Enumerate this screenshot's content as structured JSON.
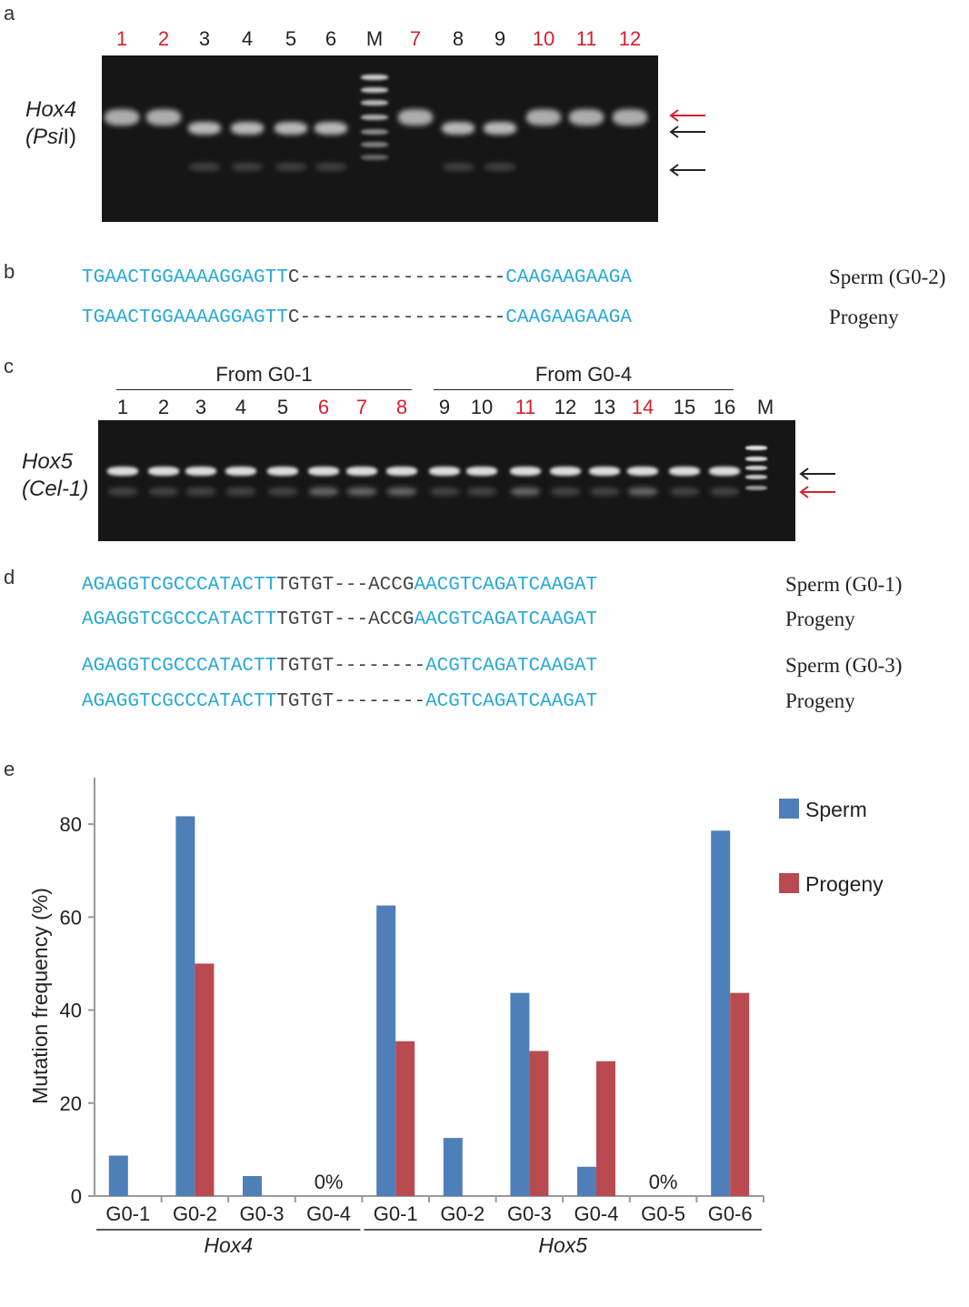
{
  "panels": {
    "a": "a",
    "b": "b",
    "c": "c",
    "d": "d",
    "e": "e"
  },
  "panel_a": {
    "lanes": [
      {
        "label": "1",
        "color": "red"
      },
      {
        "label": "2",
        "color": "red"
      },
      {
        "label": "3",
        "color": "black"
      },
      {
        "label": "4",
        "color": "black"
      },
      {
        "label": "5",
        "color": "black"
      },
      {
        "label": "6",
        "color": "black"
      },
      {
        "label": "M",
        "color": "black"
      },
      {
        "label": "7",
        "color": "red"
      },
      {
        "label": "8",
        "color": "black"
      },
      {
        "label": "9",
        "color": "black"
      },
      {
        "label": "10",
        "color": "red"
      },
      {
        "label": "11",
        "color": "red"
      },
      {
        "label": "12",
        "color": "red"
      }
    ],
    "gene": "Hox4",
    "enzyme_open": "(",
    "enzyme": "Psi",
    "enzyme_close": "I)"
  },
  "panel_b": {
    "rows": [
      {
        "left": "TGAACTGGAAAAGGAGTT",
        "mid": "C------------------",
        "right": "CAAGAAGAAGA",
        "label": "Sperm (G0-2)"
      },
      {
        "left": "TGAACTGGAAAAGGAGTT",
        "mid": "C------------------",
        "right": "CAAGAAGAAGA",
        "label": "Progeny"
      }
    ]
  },
  "panel_c": {
    "group1": "From G0-1",
    "group2": "From G0-4",
    "lanes": [
      {
        "label": "1",
        "color": "black"
      },
      {
        "label": "2",
        "color": "black"
      },
      {
        "label": "3",
        "color": "black"
      },
      {
        "label": "4",
        "color": "black"
      },
      {
        "label": "5",
        "color": "black"
      },
      {
        "label": "6",
        "color": "red"
      },
      {
        "label": "7",
        "color": "red"
      },
      {
        "label": "8",
        "color": "red"
      },
      {
        "label": "9",
        "color": "black"
      },
      {
        "label": "10",
        "color": "black"
      },
      {
        "label": "11",
        "color": "red"
      },
      {
        "label": "12",
        "color": "black"
      },
      {
        "label": "13",
        "color": "black"
      },
      {
        "label": "14",
        "color": "red"
      },
      {
        "label": "15",
        "color": "black"
      },
      {
        "label": "16",
        "color": "black"
      },
      {
        "label": "M",
        "color": "black"
      }
    ],
    "gene": "Hox5",
    "enzyme": "(Cel-1)"
  },
  "panel_d": {
    "rows": [
      {
        "left": "AGAGGTCGCCCATACTT",
        "mid": "TGTGT---ACCG",
        "right": "AACGTCAGATCAAGAT",
        "label": "Sperm (G0-1)"
      },
      {
        "left": "AGAGGTCGCCCATACTT",
        "mid": "TGTGT---ACCG",
        "right": "AACGTCAGATCAAGAT",
        "label": "Progeny"
      },
      {
        "left": "AGAGGTCGCCCATACTT",
        "mid": "TGTGT--------",
        "right": "ACGTCAGATCAAGAT",
        "label": "Sperm (G0-3)"
      },
      {
        "left": "AGAGGTCGCCCATACTT",
        "mid": "TGTGT--------",
        "right": "ACGTCAGATCAAGAT",
        "label": "Progeny"
      }
    ]
  },
  "colors": {
    "sperm": "#4f7fb8",
    "progeny": "#b94a50",
    "seq_cyan": "#27a9d6",
    "lane_red": "#d3212f"
  },
  "chart_data": {
    "type": "bar",
    "ylabel": "Mutation frequency (%)",
    "ylim": [
      0,
      90
    ],
    "yticks": [
      "0",
      "20",
      "40",
      "60",
      "80"
    ],
    "legend_position": "top-right",
    "categories": [
      "G0-1",
      "G0-2",
      "G0-3",
      "G0-4",
      "G0-1",
      "G0-2",
      "G0-3",
      "G0-4",
      "G0-5",
      "G0-6"
    ],
    "groups": [
      {
        "label": "Hox4",
        "categories": 4
      },
      {
        "label": "Hox5",
        "categories": 6
      }
    ],
    "series": [
      {
        "name": "Sperm",
        "values": [
          8.7,
          81.7,
          4.3,
          0,
          62.5,
          12.5,
          43.7,
          6.3,
          0,
          78.6
        ]
      },
      {
        "name": "Progeny",
        "values": [
          0,
          50.0,
          0,
          0,
          33.3,
          0,
          31.2,
          29.0,
          0,
          43.7
        ]
      }
    ],
    "annotations": [
      {
        "category_index": 3,
        "text": "0%"
      },
      {
        "category_index": 8,
        "text": "0%"
      }
    ]
  }
}
